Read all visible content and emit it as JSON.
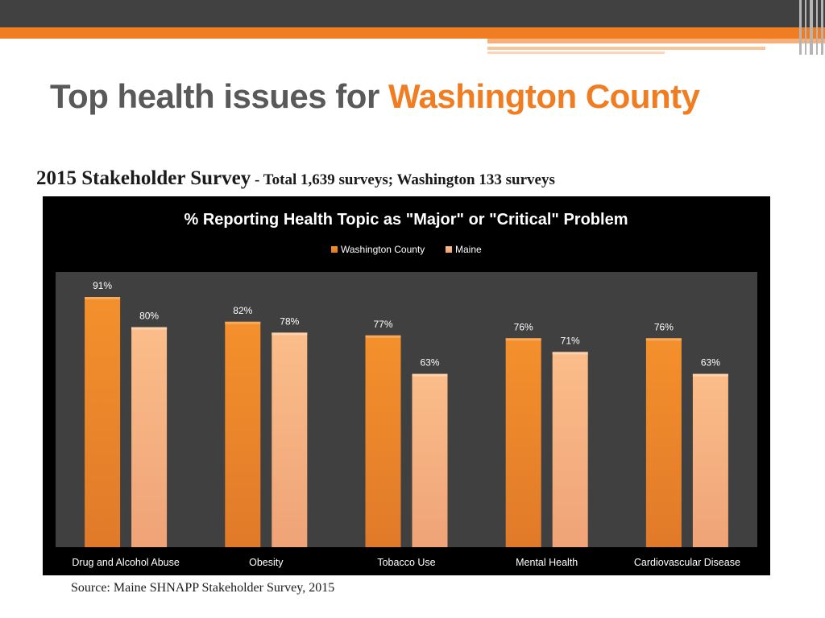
{
  "slide": {
    "title_main": "Top health issues for ",
    "title_accent": "Washington County",
    "subtitle_bold": "2015 Stakeholder Survey",
    "subtitle_rest": " - Total 1,639 surveys; Washington 133 surveys",
    "source": "Source: Maine SHNAPP Stakeholder Survey, 2015"
  },
  "colors": {
    "accent": "#f07d22",
    "series_washington": "#f08a24",
    "series_maine": "#f9b37c",
    "plot_background": "#404040",
    "chart_background": "#000000"
  },
  "chart_data": {
    "type": "bar",
    "title": "% Reporting Health Topic as \"Major\" or \"Critical\" Problem",
    "legend_position": "top",
    "categories": [
      "Drug and Alcohol Abuse",
      "Obesity",
      "Tobacco Use",
      "Mental Health",
      "Cardiovascular Disease"
    ],
    "series": [
      {
        "name": "Washington County",
        "values": [
          91,
          82,
          77,
          76,
          76
        ],
        "labels": [
          "91%",
          "82%",
          "77%",
          "76%",
          "76%"
        ]
      },
      {
        "name": "Maine",
        "values": [
          80,
          78,
          63,
          71,
          63
        ],
        "labels": [
          "80%",
          "78%",
          "63%",
          "71%",
          "63%"
        ]
      }
    ],
    "ylim": [
      0,
      100
    ],
    "grid": false,
    "xlabel": "",
    "ylabel": ""
  }
}
